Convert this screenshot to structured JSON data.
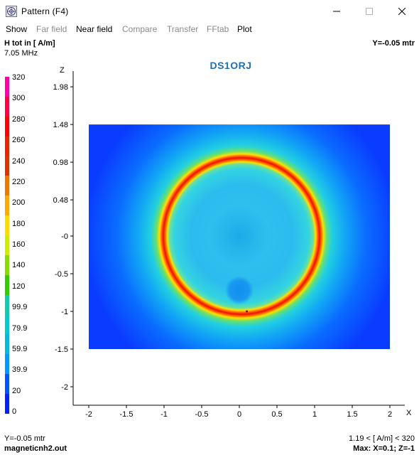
{
  "window": {
    "title": "Pattern   (F4)",
    "controls": [
      "minimize",
      "maximize",
      "close"
    ]
  },
  "menu": [
    {
      "label": "Show",
      "enabled": true
    },
    {
      "label": "Far field",
      "enabled": false
    },
    {
      "label": "Near field",
      "enabled": true
    },
    {
      "label": "Compare",
      "enabled": false
    },
    {
      "label": "Transfer",
      "enabled": false
    },
    {
      "label": "FFtab",
      "enabled": false
    },
    {
      "label": "Plot",
      "enabled": true
    }
  ],
  "header": {
    "quantity": "H tot in [ A/m]",
    "frequency": "7.05 MHz",
    "plane": "Y=-0.05 mtr"
  },
  "footer": {
    "plane": "Y=-0.05 mtr",
    "file": "magneticnh2.out",
    "range": "1.19 < [ A/m] < 320",
    "max": "Max: X=0.1; Z=-1"
  },
  "colorbar": {
    "labels": [
      "320",
      "300",
      "280",
      "260",
      "240",
      "220",
      "200",
      "180",
      "160",
      "140",
      "120",
      "99.9",
      "79.9",
      "59.9",
      "39.9",
      "20",
      "0"
    ],
    "colors": [
      "#ff00aa",
      "#ff0044",
      "#ff0000",
      "#ee2200",
      "#dd3300",
      "#ee7700",
      "#ffaa00",
      "#ffdd00",
      "#ccee00",
      "#88dd00",
      "#33cc00",
      "#11ccaa",
      "#00cccc",
      "#00bbdd",
      "#0099ff",
      "#0055ff",
      "#0022ff"
    ]
  },
  "chart_data": {
    "type": "heatmap",
    "title": "DS1ORJ",
    "xlabel": "X",
    "ylabel": "Z",
    "xticks": [
      "-2",
      "-1.5",
      "-1",
      "-0.5",
      "0",
      "0.5",
      "1",
      "1.5",
      "2"
    ],
    "yticks": [
      "1.98",
      "1.48",
      "0.98",
      "0.48",
      "-0",
      "-0.5",
      "-1",
      "-1.5",
      "-2"
    ],
    "xlim": [
      -2,
      2
    ],
    "ylim": [
      -2.1,
      2.1
    ],
    "field_extent": {
      "x": [
        -2,
        2
      ],
      "z": [
        -1.5,
        1.48
      ]
    },
    "loop": {
      "center_x": 0,
      "center_z": 0,
      "radius": 1,
      "peak_value": 320
    },
    "max_location": {
      "x": 0.1,
      "z": -1
    },
    "value_range": [
      1.19,
      320
    ]
  }
}
